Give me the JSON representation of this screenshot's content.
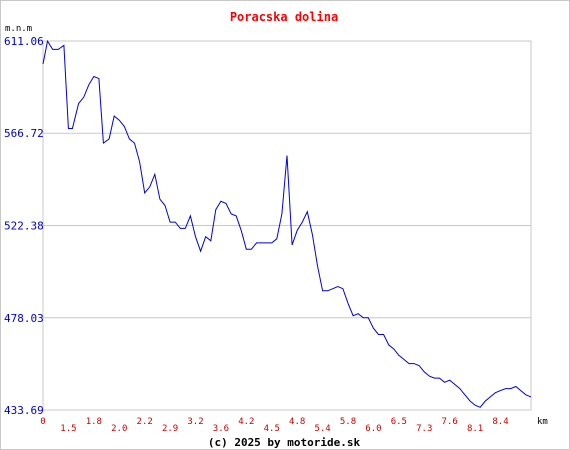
{
  "chart_data": {
    "type": "line",
    "title": "Poracska dolina",
    "ylabel": "m.n.m",
    "xlabel": "km",
    "credit": "(c) 2025 by motoride.sk",
    "grid": "horizontal",
    "ylim": [
      433.69,
      611.06
    ],
    "xlim": [
      0,
      8.64
    ],
    "y_ticks": [
      "611.06",
      "566.72",
      "522.38",
      "478.03",
      "433.69"
    ],
    "x_ticks": [
      {
        "value": 0,
        "label": "0"
      },
      {
        "value": 0.45,
        "label": "1.5"
      },
      {
        "value": 0.9,
        "label": "1.8"
      },
      {
        "value": 1.35,
        "label": "2.0"
      },
      {
        "value": 1.8,
        "label": "2.2"
      },
      {
        "value": 2.25,
        "label": "2.9"
      },
      {
        "value": 2.7,
        "label": "3.2"
      },
      {
        "value": 3.15,
        "label": "3.6"
      },
      {
        "value": 3.6,
        "label": "4.2"
      },
      {
        "value": 4.05,
        "label": "4.5"
      },
      {
        "value": 4.5,
        "label": "4.8"
      },
      {
        "value": 4.95,
        "label": "5.4"
      },
      {
        "value": 5.4,
        "label": "5.8"
      },
      {
        "value": 5.85,
        "label": "6.0"
      },
      {
        "value": 6.3,
        "label": "6.5"
      },
      {
        "value": 6.75,
        "label": "7.3"
      },
      {
        "value": 7.2,
        "label": "7.6"
      },
      {
        "value": 7.65,
        "label": "8.1"
      },
      {
        "value": 8.1,
        "label": "8.4"
      }
    ],
    "series": [
      {
        "color": "#0000dd",
        "x": [
          0,
          0.08,
          0.17,
          0.27,
          0.37,
          0.45,
          0.52,
          0.63,
          0.72,
          0.81,
          0.9,
          0.99,
          1.07,
          1.17,
          1.26,
          1.35,
          1.44,
          1.53,
          1.62,
          1.71,
          1.8,
          1.89,
          1.98,
          2.07,
          2.16,
          2.25,
          2.34,
          2.43,
          2.52,
          2.61,
          2.7,
          2.79,
          2.88,
          2.97,
          3.06,
          3.15,
          3.24,
          3.33,
          3.42,
          3.51,
          3.6,
          3.69,
          3.78,
          3.87,
          3.96,
          4.05,
          4.14,
          4.23,
          4.32,
          4.41,
          4.5,
          4.59,
          4.68,
          4.77,
          4.86,
          4.95,
          5.04,
          5.13,
          5.22,
          5.31,
          5.4,
          5.49,
          5.58,
          5.67,
          5.76,
          5.85,
          5.94,
          6.03,
          6.12,
          6.21,
          6.3,
          6.39,
          6.48,
          6.57,
          6.66,
          6.75,
          6.84,
          6.93,
          7.02,
          7.11,
          7.2,
          7.29,
          7.38,
          7.47,
          7.56,
          7.65,
          7.74,
          7.83,
          7.92,
          8.01,
          8.1,
          8.19,
          8.28,
          8.37,
          8.46,
          8.55,
          8.64
        ],
        "y": [
          600,
          611,
          607,
          607,
          609,
          569,
          569,
          581,
          584,
          590,
          594,
          593,
          562,
          564,
          575,
          573,
          570,
          564,
          562,
          553,
          538,
          541,
          547,
          535,
          532,
          524,
          524,
          521,
          521,
          527,
          517,
          510,
          517,
          515,
          530,
          534,
          533,
          528,
          527,
          520,
          511,
          511,
          514,
          514,
          514,
          514,
          516,
          528,
          556,
          513,
          520,
          524,
          529,
          518,
          503,
          491,
          491,
          492,
          493,
          492,
          485,
          479,
          480,
          478,
          478,
          473,
          470,
          470,
          465,
          463,
          460,
          458,
          456,
          456,
          455,
          452,
          450,
          449,
          449,
          447,
          448,
          446,
          444,
          441,
          438,
          436,
          435,
          438,
          440,
          442,
          443,
          444,
          444,
          445,
          443,
          441,
          440
        ]
      }
    ]
  }
}
